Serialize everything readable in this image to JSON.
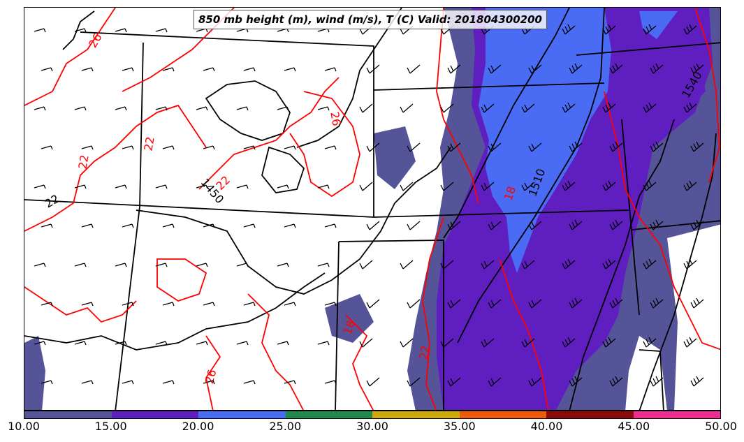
{
  "title": "850 mb height (m), wind (m/s), T (C) Valid: 201804300200",
  "colorbar": {
    "ticks": [
      "10.00",
      "15.00",
      "20.00",
      "25.00",
      "30.00",
      "35.00",
      "40.00",
      "45.00",
      "50.00"
    ],
    "colors": [
      "#565499",
      "#5f1fc0",
      "#4a6cf5",
      "#208a4a",
      "#cfa80c",
      "#ef5a0a",
      "#8d0a0a",
      "#ee2d92"
    ]
  },
  "contour_labels": {
    "height": [
      "1450",
      "1510",
      "1540"
    ],
    "temperature": [
      "26",
      "26",
      "26",
      "22",
      "22",
      "22",
      "22",
      "18",
      "18",
      "22"
    ]
  },
  "colors": {
    "height_contour": "#000000",
    "temperature_contour": "#ff0000",
    "state_borders": "#000000"
  }
}
